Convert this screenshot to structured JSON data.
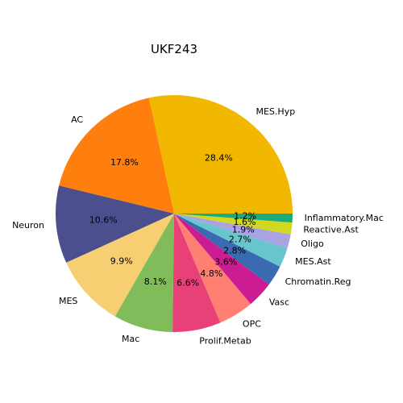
{
  "chart_data": {
    "type": "pie",
    "title": "UKF243",
    "start_angle_deg": 0,
    "direction": "counterclockwise",
    "slices": [
      {
        "label": "MES.Hyp",
        "value": 28.4,
        "pct_label": "28.4%",
        "color": "#F2B701"
      },
      {
        "label": "AC",
        "value": 17.8,
        "pct_label": "17.8%",
        "color": "#FF7F0E"
      },
      {
        "label": "Neuron",
        "value": 10.6,
        "pct_label": "10.6%",
        "color": "#4B4F8E"
      },
      {
        "label": "MES",
        "value": 9.9,
        "pct_label": "9.9%",
        "color": "#F7CF72"
      },
      {
        "label": "Mac",
        "value": 8.1,
        "pct_label": "8.1%",
        "color": "#80BC5A"
      },
      {
        "label": "Prolif.Metab",
        "value": 6.6,
        "pct_label": "6.6%",
        "color": "#E84178"
      },
      {
        "label": "OPC",
        "value": 4.8,
        "pct_label": "4.8%",
        "color": "#FF7F73"
      },
      {
        "label": "Vasc",
        "value": 3.6,
        "pct_label": "3.6%",
        "color": "#CC1C93"
      },
      {
        "label": "Chromatin.Reg",
        "value": 2.8,
        "pct_label": "2.8%",
        "color": "#3A6AB0"
      },
      {
        "label": "MES.Ast",
        "value": 2.7,
        "pct_label": "2.7%",
        "color": "#67C5CD"
      },
      {
        "label": "Oligo",
        "value": 1.9,
        "pct_label": "1.9%",
        "color": "#A9A3E2"
      },
      {
        "label": "Reactive.Ast",
        "value": 1.6,
        "pct_label": "1.6%",
        "color": "#D2D81F"
      },
      {
        "label": "Inflammatory.Mac",
        "value": 1.2,
        "pct_label": "1.2%",
        "color": "#1BAA7A"
      }
    ]
  }
}
